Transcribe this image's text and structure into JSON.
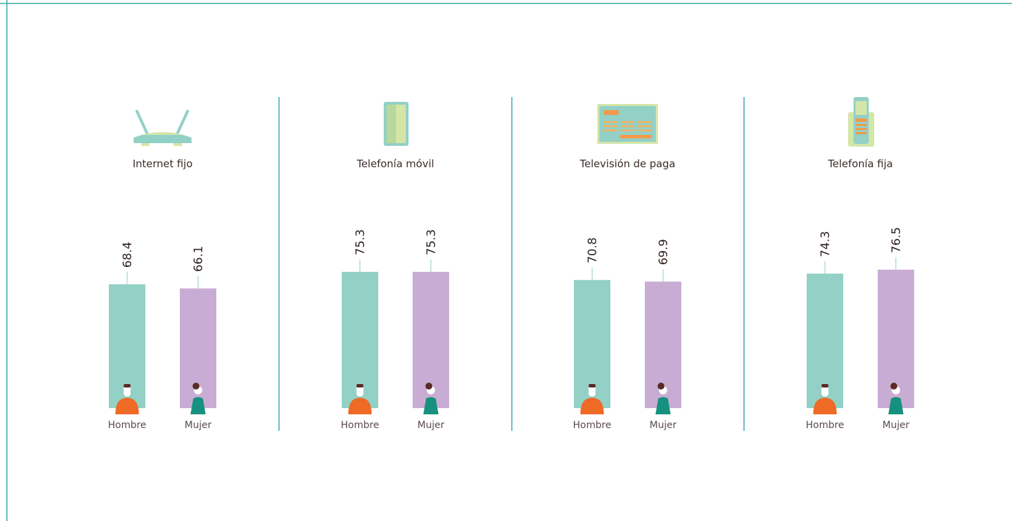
{
  "chart_data": [
    {
      "type": "bar",
      "title": "Internet fijo",
      "categories": [
        "Hombre",
        "Mujer"
      ],
      "values": [
        68.4,
        66.1
      ],
      "colors": [
        "#93d0c6",
        "#c9acd4"
      ]
    },
    {
      "type": "bar",
      "title": "Telefonía móvil",
      "categories": [
        "Hombre",
        "Mujer"
      ],
      "values": [
        75.3,
        75.3
      ],
      "colors": [
        "#93d0c6",
        "#c9acd4"
      ]
    },
    {
      "type": "bar",
      "title": "Televisión de paga",
      "categories": [
        "Hombre",
        "Mujer"
      ],
      "values": [
        70.8,
        69.9
      ],
      "colors": [
        "#93d0c6",
        "#c9acd4"
      ]
    },
    {
      "type": "bar",
      "title": "Telefonía fija",
      "categories": [
        "Hombre",
        "Mujer"
      ],
      "values": [
        74.3,
        76.5
      ],
      "colors": [
        "#93d0c6",
        "#c9acd4"
      ]
    }
  ]
}
